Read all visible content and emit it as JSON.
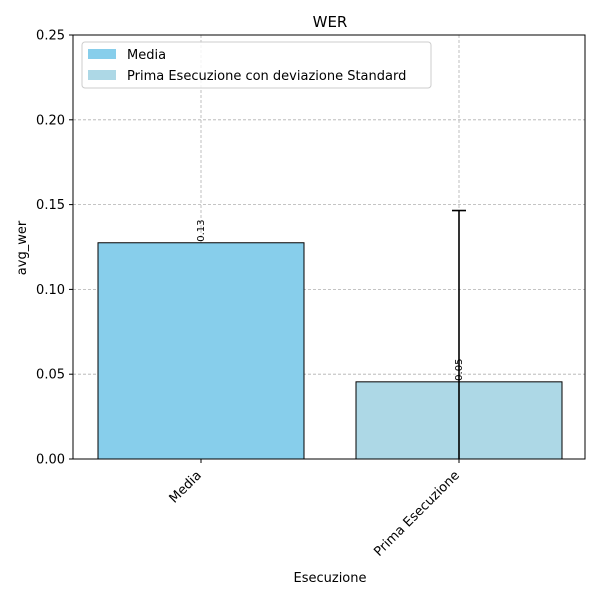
{
  "chart_data": {
    "type": "bar",
    "title": "WER",
    "xlabel": "Esecuzione",
    "ylabel": "avg_wer",
    "categories": [
      "Media",
      "Prima Esecuzione"
    ],
    "values": [
      0.1275,
      0.0455
    ],
    "data_labels": [
      "0.13",
      "0.05"
    ],
    "error_bars": [
      null,
      0.101
    ],
    "colors": [
      "#87CEEB",
      "#ADD8E6"
    ],
    "ylim": [
      0,
      0.25
    ],
    "yticks": [
      0.0,
      0.05,
      0.1,
      0.15,
      0.2,
      0.25
    ],
    "ytick_labels": [
      "0.00",
      "0.05",
      "0.10",
      "0.15",
      "0.20",
      "0.25"
    ],
    "grid": true,
    "legend_position": "top-left",
    "legend": [
      {
        "label": "Media",
        "color": "#87CEEB"
      },
      {
        "label": "Prima Esecuzione con deviazione Standard",
        "color": "#ADD8E6"
      }
    ]
  }
}
